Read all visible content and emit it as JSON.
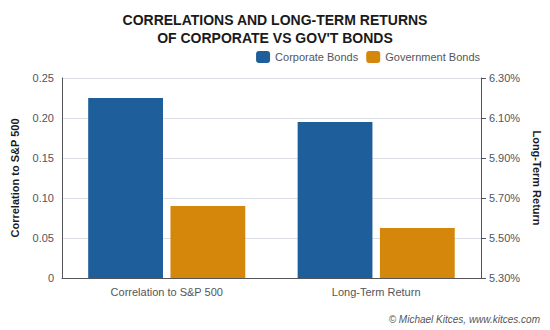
{
  "chart_data": {
    "type": "bar",
    "title": "CORRELATIONS AND LONG-TERM RETURNS\nOF CORPORATE VS GOV'T BONDS",
    "categories": [
      "Correlation to S&P 500",
      "Long-Term Return"
    ],
    "series": [
      {
        "name": "Corporate Bonds",
        "color": "#1E5E9A",
        "values": [
          0.225,
          null
        ]
      },
      {
        "name": "Government Bonds",
        "color": "#D4870A",
        "values": [
          0.09,
          null
        ]
      },
      {
        "name": "Corporate Bonds",
        "color": "#1E5E9A",
        "values": [
          null,
          6.08
        ],
        "axis": "y2"
      },
      {
        "name": "Government Bonds",
        "color": "#D4870A",
        "values": [
          null,
          5.55
        ],
        "axis": "y2"
      }
    ],
    "ylabel": "Correlation to S&P 500",
    "y2label": "Long-Term Return",
    "ylim": [
      0,
      0.25
    ],
    "yticks": [
      0,
      0.05,
      {
        "value": 0.1,
        "label": "0.10"
      },
      0.15,
      {
        "value": 0.2,
        "label": "0.20"
      },
      0.25
    ],
    "y2lim": [
      5.3,
      6.3
    ],
    "y2ticks": [
      {
        "value": 5.3,
        "label": "5.30%"
      },
      {
        "value": 5.5,
        "label": "5.50%"
      },
      {
        "value": 5.7,
        "label": "5.70%"
      },
      {
        "value": 5.9,
        "label": "5.90%"
      },
      {
        "value": 6.1,
        "label": "6.10%"
      },
      {
        "value": 6.3,
        "label": "6.30%"
      }
    ],
    "grid": true,
    "legend": "upper right",
    "annotation": "© Michael Kitces, www.kitces.com"
  }
}
